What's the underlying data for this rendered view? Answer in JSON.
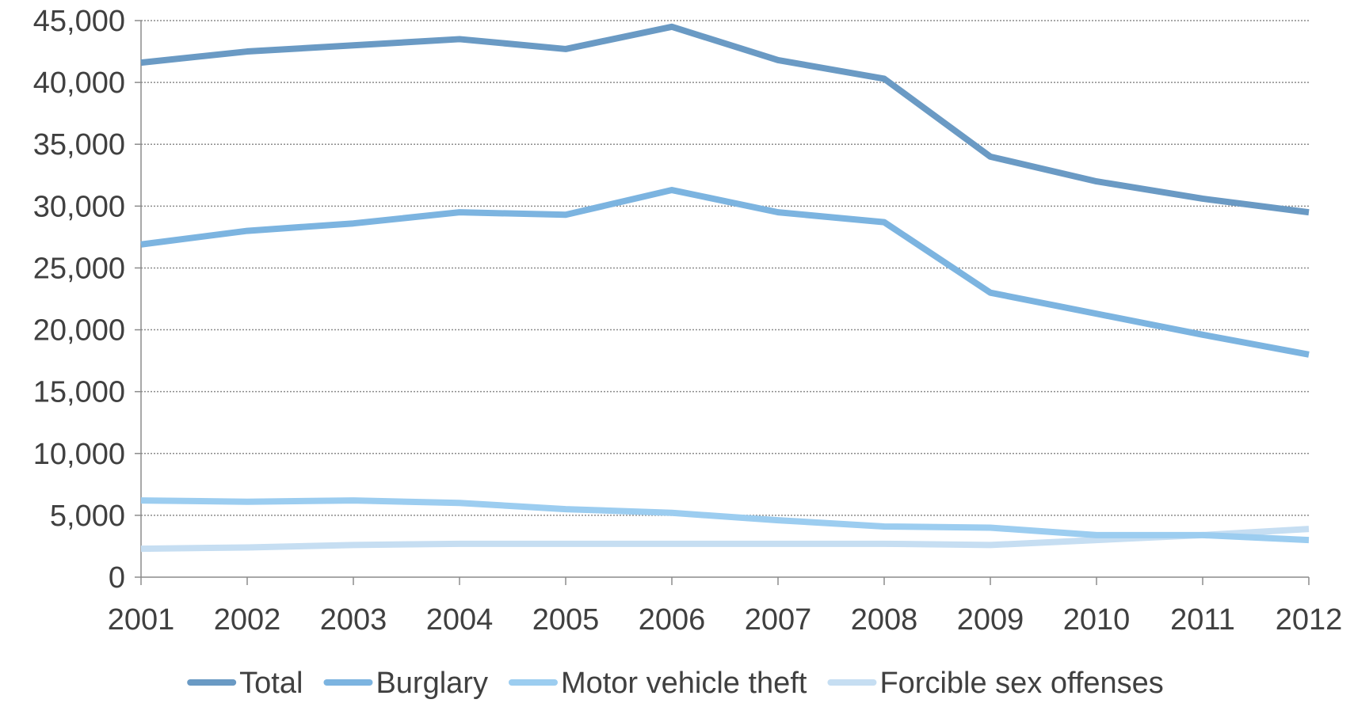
{
  "chart_data": {
    "type": "line",
    "title": "",
    "xlabel": "",
    "ylabel": "",
    "categories": [
      "2001",
      "2002",
      "2003",
      "2004",
      "2005",
      "2006",
      "2007",
      "2008",
      "2009",
      "2010",
      "2011",
      "2012"
    ],
    "y_ticks": [
      "0",
      "5,000",
      "10,000",
      "15,000",
      "20,000",
      "25,000",
      "30,000",
      "35,000",
      "40,000",
      "45,000"
    ],
    "ylim": [
      0,
      45000
    ],
    "grid": "horizontal dotted",
    "legend_position": "bottom",
    "series": [
      {
        "name": "Total",
        "color": "#6a9ac4",
        "values": [
          41600,
          42500,
          43000,
          43500,
          42700,
          44500,
          41800,
          40300,
          34000,
          32000,
          30600,
          29500
        ]
      },
      {
        "name": "Burglary",
        "color": "#7cb4e0",
        "values": [
          26900,
          28000,
          28600,
          29500,
          29300,
          31300,
          29500,
          28700,
          23000,
          21300,
          19600,
          18000
        ]
      },
      {
        "name": "Motor vehicle theft",
        "color": "#9ccdf0",
        "values": [
          6200,
          6100,
          6200,
          6000,
          5500,
          5200,
          4600,
          4100,
          4000,
          3400,
          3400,
          3000
        ]
      },
      {
        "name": "Forcible sex offenses",
        "color": "#c6def2",
        "values": [
          2300,
          2400,
          2600,
          2700,
          2700,
          2700,
          2700,
          2700,
          2600,
          3000,
          3400,
          3900
        ]
      }
    ]
  }
}
